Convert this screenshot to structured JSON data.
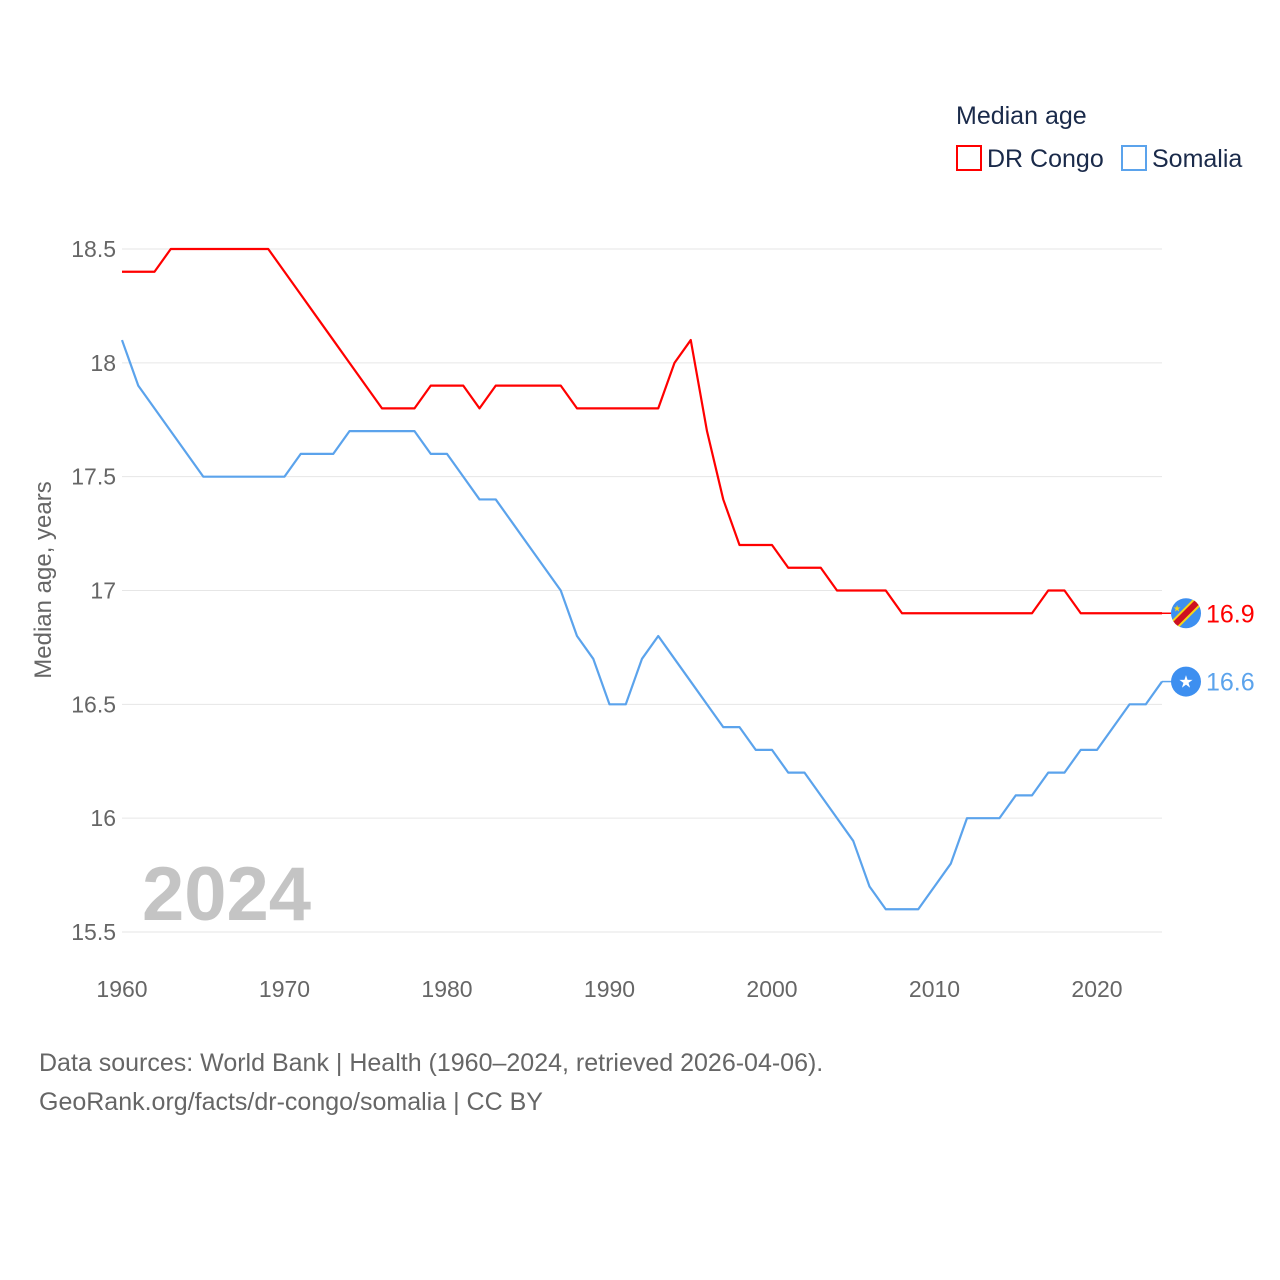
{
  "chart_data": {
    "type": "line",
    "legend_title": "Median age",
    "legend_placement": "top-right",
    "ylabel": "Median age, years",
    "xlabel": "",
    "ylim": [
      15.5,
      18.5
    ],
    "xlim": [
      1960,
      2024
    ],
    "yticks": [
      "15.5",
      "16",
      "16.5",
      "17",
      "17.5",
      "18",
      "18.5"
    ],
    "ytick_values": [
      15.5,
      16,
      16.5,
      17,
      17.5,
      18,
      18.5
    ],
    "xticks": [
      "1960",
      "1970",
      "1980",
      "1990",
      "2000",
      "2010",
      "2020"
    ],
    "xtick_values": [
      1960,
      1970,
      1980,
      1990,
      2000,
      2010,
      2020
    ],
    "grid": true,
    "year_label": "2024",
    "x": [
      1960,
      1961,
      1962,
      1963,
      1964,
      1965,
      1966,
      1967,
      1968,
      1969,
      1970,
      1971,
      1972,
      1973,
      1974,
      1975,
      1976,
      1977,
      1978,
      1979,
      1980,
      1981,
      1982,
      1983,
      1984,
      1985,
      1986,
      1987,
      1988,
      1989,
      1990,
      1991,
      1992,
      1993,
      1994,
      1995,
      1996,
      1997,
      1998,
      1999,
      2000,
      2001,
      2002,
      2003,
      2004,
      2005,
      2006,
      2007,
      2008,
      2009,
      2010,
      2011,
      2012,
      2013,
      2014,
      2015,
      2016,
      2017,
      2018,
      2019,
      2020,
      2021,
      2022,
      2023,
      2024
    ],
    "series": [
      {
        "name": "DR Congo",
        "color": "#ff0000",
        "end_label": "16.9",
        "flag": "dr-congo-flag-icon",
        "values": [
          18.4,
          18.4,
          18.4,
          18.5,
          18.5,
          18.5,
          18.5,
          18.5,
          18.5,
          18.5,
          18.4,
          18.3,
          18.2,
          18.1,
          18.0,
          17.9,
          17.8,
          17.8,
          17.8,
          17.9,
          17.9,
          17.9,
          17.8,
          17.9,
          17.9,
          17.9,
          17.9,
          17.9,
          17.8,
          17.8,
          17.8,
          17.8,
          17.8,
          17.8,
          18.0,
          18.1,
          17.7,
          17.4,
          17.2,
          17.2,
          17.2,
          17.1,
          17.1,
          17.1,
          17.0,
          17.0,
          17.0,
          17.0,
          16.9,
          16.9,
          16.9,
          16.9,
          16.9,
          16.9,
          16.9,
          16.9,
          16.9,
          17.0,
          17.0,
          16.9,
          16.9,
          16.9,
          16.9,
          16.9,
          16.9
        ]
      },
      {
        "name": "Somalia",
        "color": "#5ba3ec",
        "end_label": "16.6",
        "flag": "somalia-flag-icon",
        "values": [
          18.1,
          17.9,
          17.8,
          17.7,
          17.6,
          17.5,
          17.5,
          17.5,
          17.5,
          17.5,
          17.5,
          17.6,
          17.6,
          17.6,
          17.7,
          17.7,
          17.7,
          17.7,
          17.7,
          17.6,
          17.6,
          17.5,
          17.4,
          17.4,
          17.3,
          17.2,
          17.1,
          17.0,
          16.8,
          16.7,
          16.5,
          16.5,
          16.7,
          16.8,
          16.7,
          16.6,
          16.5,
          16.4,
          16.4,
          16.3,
          16.3,
          16.2,
          16.2,
          16.1,
          16.0,
          15.9,
          15.7,
          15.6,
          15.6,
          15.6,
          15.7,
          15.8,
          16.0,
          16.0,
          16.0,
          16.1,
          16.1,
          16.2,
          16.2,
          16.3,
          16.3,
          16.4,
          16.5,
          16.5,
          16.6
        ]
      }
    ]
  },
  "footer": {
    "line1": "Data sources: World Bank | Health (1960–2024, retrieved 2026-04-06).",
    "line2": "GeoRank.org/facts/dr-congo/somalia | CC BY"
  }
}
